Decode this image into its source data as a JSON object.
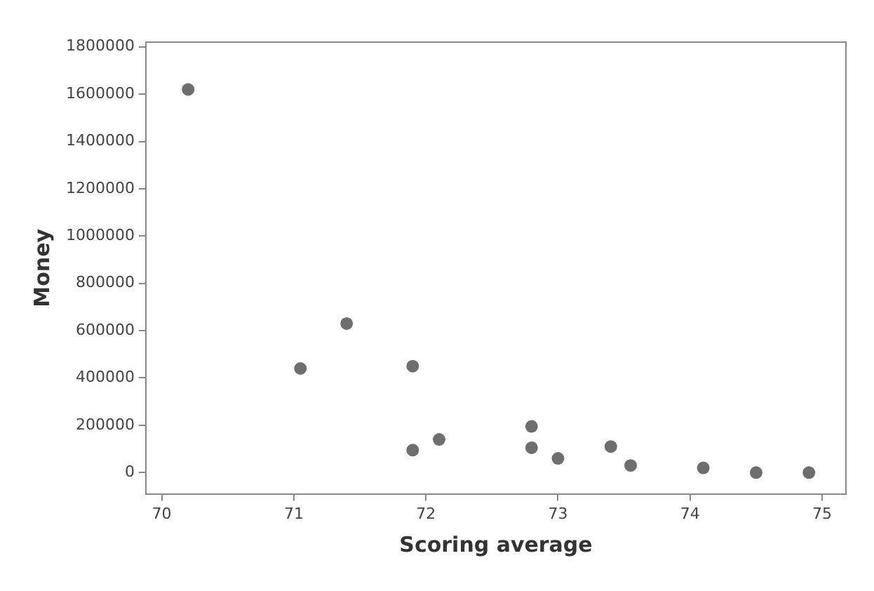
{
  "chart_data": {
    "type": "scatter",
    "xlabel": "Scoring average",
    "ylabel": "Money",
    "x": [
      70.2,
      71.05,
      71.4,
      71.9,
      71.9,
      72.1,
      72.8,
      72.8,
      73.0,
      73.4,
      73.55,
      74.1,
      74.5,
      74.9
    ],
    "values": [
      1620000,
      440000,
      630000,
      450000,
      95000,
      140000,
      195000,
      105000,
      60000,
      110000,
      30000,
      20000,
      0,
      0
    ],
    "color": "#6e6e6e",
    "marker": "circle",
    "xlim": [
      69.88,
      75.18
    ],
    "xticks": [
      70,
      71,
      72,
      73,
      74,
      75
    ],
    "ylim": [
      -90000,
      1820000
    ],
    "yticks": [
      0,
      200000,
      400000,
      600000,
      800000,
      1000000,
      1200000,
      1400000,
      1600000,
      1800000
    ],
    "grid": false,
    "legend": false
  }
}
